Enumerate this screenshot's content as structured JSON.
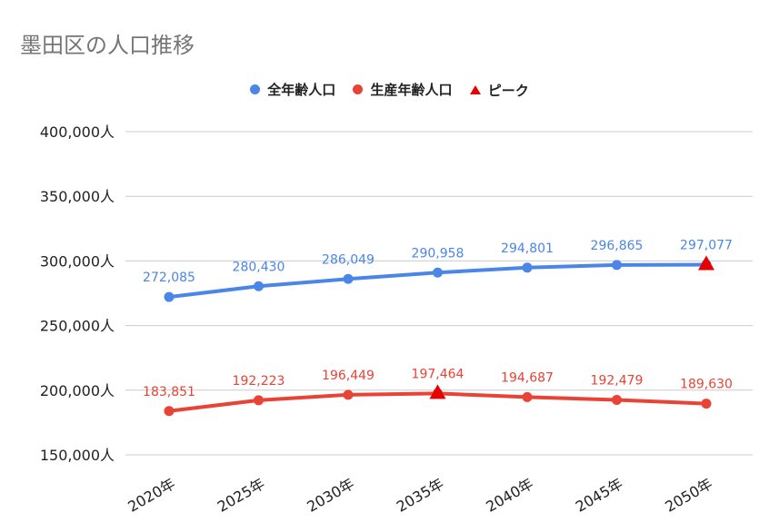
{
  "chart_data": {
    "type": "line",
    "title": "墨田区の人口推移",
    "categories": [
      "2020年",
      "2025年",
      "2030年",
      "2035年",
      "2040年",
      "2045年",
      "2050年"
    ],
    "series": [
      {
        "name": "全年齢人口",
        "color": "#4a86e8",
        "values": [
          272085,
          280430,
          286049,
          290958,
          294801,
          296865,
          297077
        ],
        "labels": [
          "272,085",
          "280,430",
          "286,049",
          "290,958",
          "294,801",
          "296,865",
          "297,077"
        ]
      },
      {
        "name": "生産年齢人口",
        "color": "#e84335",
        "values": [
          183851,
          192223,
          196449,
          197464,
          194687,
          192479,
          189630
        ],
        "labels": [
          "183,851",
          "192,223",
          "196,449",
          "197,464",
          "194,687",
          "192,479",
          "189,630"
        ]
      }
    ],
    "peak": {
      "name": "ピーク",
      "color": "#e60000",
      "points": [
        {
          "series": 0,
          "index": 6
        },
        {
          "series": 1,
          "index": 3
        }
      ]
    },
    "ylim": [
      150000,
      400000
    ],
    "yticks": [
      150000,
      200000,
      250000,
      300000,
      350000,
      400000
    ],
    "ytick_labels": [
      "150,000人",
      "200,000人",
      "250,000人",
      "300,000人",
      "350,000人",
      "400,000人"
    ],
    "grid": true,
    "legend_position": "top-center",
    "xlabel": "",
    "ylabel": ""
  }
}
